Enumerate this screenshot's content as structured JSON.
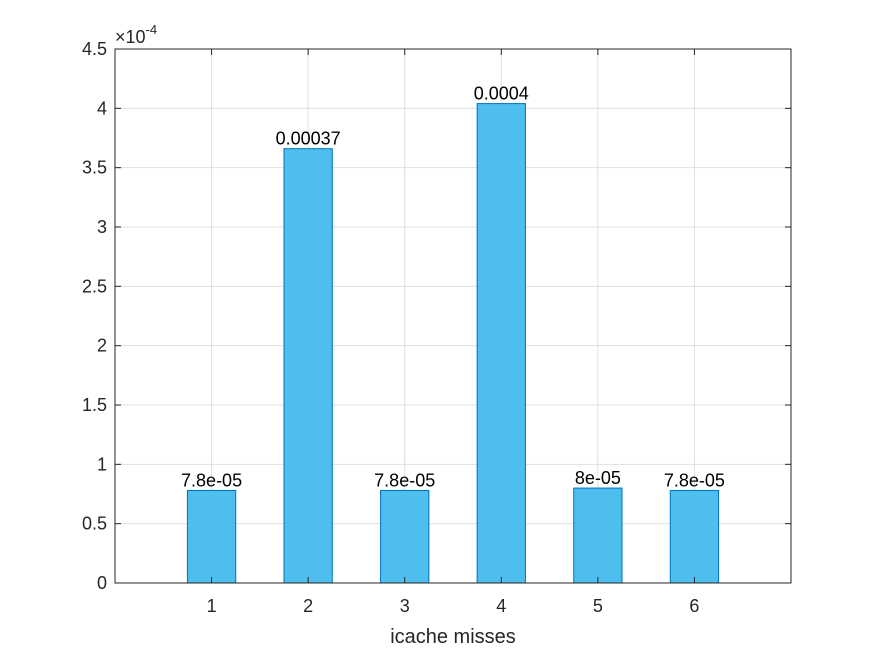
{
  "chart_data": {
    "type": "bar",
    "categories": [
      "1",
      "2",
      "3",
      "4",
      "5",
      "6"
    ],
    "values": [
      7.8e-05,
      0.000366,
      7.8e-05,
      0.000404,
      8e-05,
      7.8e-05
    ],
    "data_labels": [
      "7.8e-05",
      "0.00037",
      "7.8e-05",
      "0.0004",
      "8e-05",
      "7.8e-05"
    ],
    "xlabel": "icache misses",
    "ylabel": "",
    "title": "",
    "xlim": [
      0,
      7
    ],
    "ylim": [
      0,
      0.00045
    ],
    "y_ticks": [
      0,
      5e-05,
      0.0001,
      0.00015,
      0.0002,
      0.00025,
      0.0003,
      0.00035,
      0.0004,
      0.00045
    ],
    "y_tick_labels": [
      "0",
      "0.5",
      "1",
      "1.5",
      "2",
      "2.5",
      "3",
      "3.5",
      "4",
      "4.5"
    ],
    "y_exponent": {
      "base": "×10",
      "power": "-4"
    },
    "grid": true,
    "bar_color": "#4DBEEE",
    "bar_edge_color": "#0072BD"
  }
}
